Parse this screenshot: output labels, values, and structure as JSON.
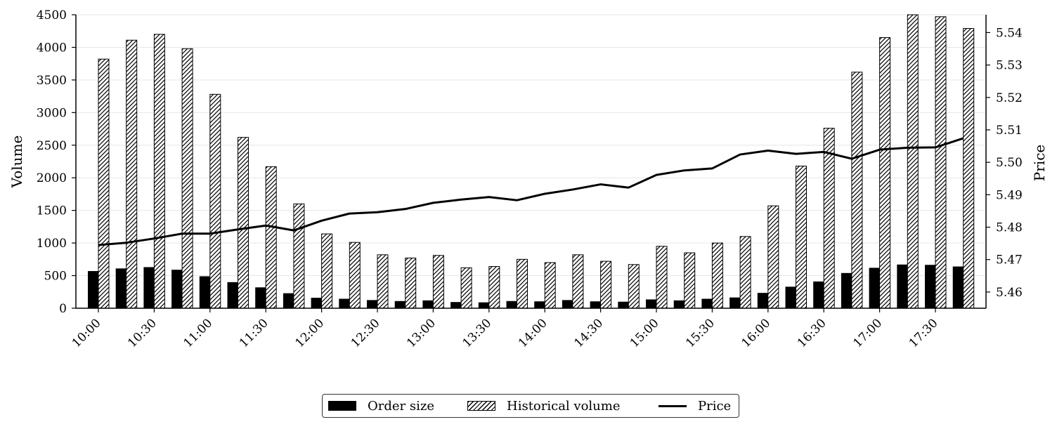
{
  "chart_data": {
    "type": "bar",
    "title": "",
    "xlabel": "",
    "ylabel": "Volume",
    "y2label": "Price",
    "ylim": [
      0,
      4500
    ],
    "y2lim": [
      5.455,
      5.5455
    ],
    "yticks": [
      "0",
      "500",
      "1000",
      "1500",
      "2000",
      "2500",
      "3000",
      "3500",
      "4000",
      "4500"
    ],
    "y2ticks": [
      "5.46",
      "5.47",
      "5.48",
      "5.49",
      "5.50",
      "5.51",
      "5.52",
      "5.53",
      "5.54"
    ],
    "categories": [
      "10:00",
      "10:15",
      "10:30",
      "10:45",
      "11:00",
      "11:15",
      "11:30",
      "11:45",
      "12:00",
      "12:15",
      "12:30",
      "12:45",
      "13:00",
      "13:15",
      "13:30",
      "13:45",
      "14:00",
      "14:15",
      "14:30",
      "14:45",
      "15:00",
      "15:15",
      "15:30",
      "15:45",
      "16:00",
      "16:15",
      "16:30",
      "16:45",
      "17:00",
      "17:15",
      "17:30",
      "17:45"
    ],
    "xtick_labels": [
      "10:00",
      "10:30",
      "11:00",
      "11:30",
      "12:00",
      "12:30",
      "13:00",
      "13:30",
      "14:00",
      "14:30",
      "15:00",
      "15:30",
      "16:00",
      "16:30",
      "17:00",
      "17:30"
    ],
    "grid": true,
    "legend_position": "bottom-center",
    "series": [
      {
        "name": "Order size",
        "kind": "bar",
        "style": "solid",
        "color": "#000000",
        "values": [
          570,
          610,
          630,
          590,
          490,
          400,
          320,
          230,
          160,
          145,
          125,
          110,
          120,
          95,
          90,
          110,
          105,
          125,
          105,
          100,
          135,
          120,
          145,
          165,
          235,
          330,
          410,
          540,
          620,
          670,
          665,
          640
        ]
      },
      {
        "name": "Historical volume",
        "kind": "bar",
        "style": "hatched",
        "color": "#000000",
        "values": [
          3820,
          4110,
          4200,
          3980,
          3280,
          2620,
          2170,
          1600,
          1140,
          1010,
          820,
          770,
          810,
          620,
          640,
          750,
          700,
          820,
          720,
          670,
          950,
          850,
          1000,
          1100,
          1570,
          2180,
          2760,
          3620,
          4150,
          4510,
          4470,
          4290
        ]
      },
      {
        "name": "Price",
        "kind": "line",
        "color": "#000000",
        "values": [
          5.4745,
          5.4752,
          5.4765,
          5.478,
          5.478,
          5.4793,
          5.4805,
          5.479,
          5.482,
          5.4842,
          5.4846,
          5.4856,
          5.4875,
          5.4885,
          5.4893,
          5.4883,
          5.4903,
          5.4916,
          5.4932,
          5.4922,
          5.4961,
          5.4975,
          5.4981,
          5.5024,
          5.5036,
          5.5026,
          5.5032,
          5.5011,
          5.5039,
          5.5045,
          5.5046,
          5.5074
        ]
      }
    ]
  }
}
